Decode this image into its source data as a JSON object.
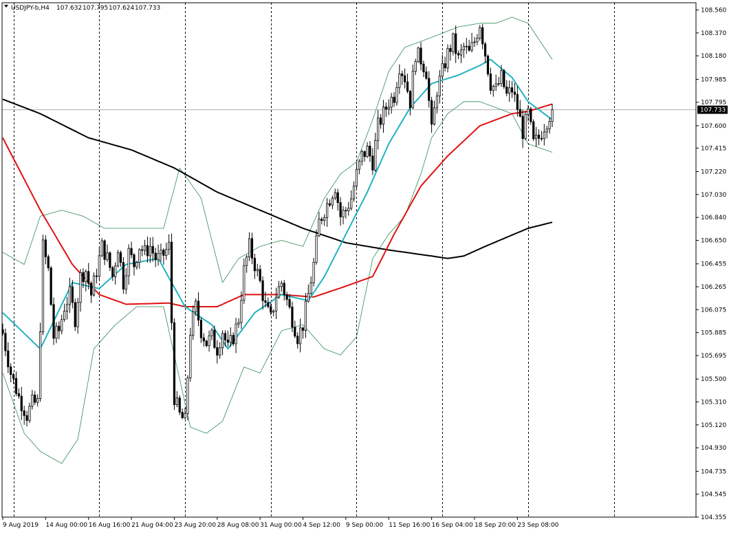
{
  "header": {
    "symbol": "USDJPY-b,H4",
    "open": "107.632",
    "high": "107.795",
    "low": "107.624",
    "close": "107.733"
  },
  "colors": {
    "background": "#ffffff",
    "bull_candle": "#ffffff",
    "bear_candle": "#000000",
    "ma_fast": "#20b2c0",
    "ma_mid": "#e01010",
    "ma_slow": "#000000",
    "bands": "#2e8b57",
    "price_tag": "#000000",
    "grid": "#000000"
  },
  "chart_data": {
    "type": "candlestick",
    "symbol": "USDJPY-b",
    "timeframe": "H4",
    "y_range": [
      104.355,
      108.62
    ],
    "y_ticks": [
      "108.560",
      "108.370",
      "108.180",
      "107.985",
      "107.795",
      "107.600",
      "107.415",
      "107.220",
      "107.030",
      "106.840",
      "106.650",
      "106.455",
      "106.265",
      "106.075",
      "105.885",
      "105.695",
      "105.500",
      "105.310",
      "105.120",
      "104.930",
      "104.735",
      "104.545",
      "104.355"
    ],
    "current_price": "107.733",
    "x_labels": [
      "9 Aug 2019",
      "14 Aug 00:00",
      "16 Aug 16:00",
      "21 Aug 04:00",
      "23 Aug 20:00",
      "28 Aug 08:00",
      "31 Aug 00:00",
      "4 Sep 12:00",
      "9 Sep 00:00",
      "11 Sep 16:00",
      "16 Sep 04:00",
      "18 Sep 20:00",
      "23 Sep 08:00"
    ],
    "x_label_index": [
      0,
      16,
      32,
      48,
      64,
      80,
      96,
      112,
      128,
      144,
      160,
      176,
      192
    ],
    "grid_vertical_index": [
      4,
      36,
      68,
      100,
      132,
      164,
      196,
      228
    ],
    "candles_shown": 206,
    "anchors": [
      [
        0,
        105.88
      ],
      [
        3,
        105.55
      ],
      [
        6,
        105.35
      ],
      [
        9,
        105.2
      ],
      [
        11,
        105.3
      ],
      [
        13,
        105.3
      ],
      [
        15,
        106.6
      ],
      [
        17,
        106.4
      ],
      [
        19,
        105.85
      ],
      [
        21,
        105.9
      ],
      [
        23,
        106.1
      ],
      [
        25,
        106.2
      ],
      [
        27,
        106.0
      ],
      [
        29,
        106.35
      ],
      [
        31,
        106.4
      ],
      [
        33,
        106.2
      ],
      [
        35,
        106.4
      ],
      [
        37,
        106.6
      ],
      [
        39,
        106.5
      ],
      [
        41,
        106.35
      ],
      [
        43,
        106.6
      ],
      [
        45,
        106.3
      ],
      [
        47,
        106.55
      ],
      [
        49,
        106.45
      ],
      [
        51,
        106.6
      ],
      [
        53,
        106.55
      ],
      [
        55,
        106.6
      ],
      [
        57,
        106.5
      ],
      [
        59,
        106.5
      ],
      [
        62,
        106.6
      ],
      [
        64,
        105.35
      ],
      [
        66,
        105.2
      ],
      [
        68,
        105.15
      ],
      [
        70,
        105.9
      ],
      [
        72,
        106.1
      ],
      [
        74,
        105.9
      ],
      [
        76,
        105.8
      ],
      [
        78,
        105.85
      ],
      [
        80,
        105.75
      ],
      [
        82,
        105.9
      ],
      [
        84,
        105.75
      ],
      [
        86,
        105.85
      ],
      [
        88,
        106.0
      ],
      [
        90,
        106.4
      ],
      [
        92,
        106.6
      ],
      [
        94,
        106.45
      ],
      [
        96,
        106.3
      ],
      [
        98,
        106.1
      ],
      [
        100,
        106.0
      ],
      [
        102,
        106.2
      ],
      [
        104,
        106.3
      ],
      [
        106,
        106.15
      ],
      [
        108,
        106.0
      ],
      [
        110,
        105.85
      ],
      [
        112,
        105.95
      ],
      [
        114,
        106.2
      ],
      [
        116,
        106.45
      ],
      [
        118,
        106.8
      ],
      [
        120,
        106.9
      ],
      [
        122,
        107.0
      ],
      [
        124,
        107.1
      ],
      [
        126,
        106.85
      ],
      [
        128,
        106.9
      ],
      [
        130,
        107.0
      ],
      [
        132,
        107.2
      ],
      [
        134,
        107.35
      ],
      [
        136,
        107.4
      ],
      [
        138,
        107.3
      ],
      [
        140,
        107.6
      ],
      [
        142,
        107.7
      ],
      [
        144,
        107.8
      ],
      [
        146,
        107.85
      ],
      [
        148,
        108.1
      ],
      [
        150,
        108.0
      ],
      [
        152,
        107.8
      ],
      [
        154,
        108.2
      ],
      [
        156,
        108.15
      ],
      [
        158,
        108.05
      ],
      [
        160,
        107.55
      ],
      [
        162,
        107.9
      ],
      [
        164,
        108.05
      ],
      [
        166,
        108.2
      ],
      [
        168,
        108.3
      ],
      [
        170,
        108.15
      ],
      [
        172,
        108.25
      ],
      [
        174,
        108.2
      ],
      [
        176,
        108.3
      ],
      [
        178,
        108.45
      ],
      [
        180,
        108.2
      ],
      [
        182,
        107.95
      ],
      [
        184,
        107.9
      ],
      [
        186,
        108.0
      ],
      [
        188,
        107.85
      ],
      [
        190,
        107.9
      ],
      [
        192,
        107.75
      ],
      [
        194,
        107.55
      ],
      [
        196,
        107.7
      ],
      [
        198,
        107.45
      ],
      [
        200,
        107.5
      ],
      [
        202,
        107.6
      ],
      [
        205,
        107.733
      ]
    ],
    "ma_fast_points": [
      [
        0,
        106.05
      ],
      [
        14,
        105.75
      ],
      [
        26,
        106.3
      ],
      [
        36,
        106.25
      ],
      [
        46,
        106.45
      ],
      [
        58,
        106.5
      ],
      [
        68,
        106.1
      ],
      [
        78,
        105.95
      ],
      [
        84,
        105.75
      ],
      [
        94,
        106.05
      ],
      [
        104,
        106.2
      ],
      [
        114,
        106.15
      ],
      [
        120,
        106.35
      ],
      [
        128,
        106.7
      ],
      [
        136,
        107.05
      ],
      [
        144,
        107.45
      ],
      [
        152,
        107.75
      ],
      [
        160,
        107.95
      ],
      [
        170,
        108.02
      ],
      [
        178,
        108.1
      ],
      [
        182,
        108.15
      ],
      [
        190,
        108.0
      ],
      [
        196,
        107.8
      ],
      [
        205,
        107.65
      ]
    ],
    "ma_mid_points": [
      [
        0,
        107.5
      ],
      [
        14,
        106.9
      ],
      [
        26,
        106.45
      ],
      [
        36,
        106.2
      ],
      [
        46,
        106.12
      ],
      [
        62,
        106.13
      ],
      [
        68,
        106.1
      ],
      [
        80,
        106.1
      ],
      [
        90,
        106.2
      ],
      [
        104,
        106.2
      ],
      [
        116,
        106.18
      ],
      [
        128,
        106.27
      ],
      [
        138,
        106.35
      ],
      [
        146,
        106.7
      ],
      [
        156,
        107.1
      ],
      [
        166,
        107.35
      ],
      [
        178,
        107.6
      ],
      [
        190,
        107.7
      ],
      [
        196,
        107.72
      ],
      [
        205,
        107.78
      ]
    ],
    "ma_slow_points": [
      [
        0,
        107.82
      ],
      [
        14,
        107.7
      ],
      [
        32,
        107.5
      ],
      [
        48,
        107.4
      ],
      [
        64,
        107.25
      ],
      [
        80,
        107.05
      ],
      [
        96,
        106.9
      ],
      [
        112,
        106.75
      ],
      [
        128,
        106.63
      ],
      [
        144,
        106.57
      ],
      [
        160,
        106.52
      ],
      [
        166,
        106.5
      ],
      [
        172,
        106.52
      ],
      [
        180,
        106.6
      ],
      [
        196,
        106.75
      ],
      [
        205,
        106.8
      ]
    ],
    "band_upper_points": [
      [
        0,
        106.55
      ],
      [
        8,
        106.45
      ],
      [
        14,
        106.85
      ],
      [
        22,
        106.9
      ],
      [
        30,
        106.85
      ],
      [
        38,
        106.75
      ],
      [
        48,
        106.75
      ],
      [
        60,
        106.75
      ],
      [
        66,
        107.25
      ],
      [
        74,
        107.0
      ],
      [
        82,
        106.3
      ],
      [
        88,
        106.5
      ],
      [
        96,
        106.6
      ],
      [
        104,
        106.65
      ],
      [
        112,
        106.6
      ],
      [
        120,
        107.0
      ],
      [
        126,
        107.2
      ],
      [
        132,
        107.3
      ],
      [
        138,
        107.65
      ],
      [
        144,
        108.05
      ],
      [
        150,
        108.25
      ],
      [
        156,
        108.3
      ],
      [
        162,
        108.35
      ],
      [
        170,
        108.42
      ],
      [
        178,
        108.45
      ],
      [
        184,
        108.45
      ],
      [
        190,
        108.5
      ],
      [
        196,
        108.45
      ],
      [
        205,
        108.15
      ]
    ],
    "band_lower_points": [
      [
        0,
        105.55
      ],
      [
        8,
        105.05
      ],
      [
        14,
        104.9
      ],
      [
        22,
        104.8
      ],
      [
        28,
        105.0
      ],
      [
        34,
        105.75
      ],
      [
        42,
        105.95
      ],
      [
        50,
        106.1
      ],
      [
        60,
        106.1
      ],
      [
        64,
        105.7
      ],
      [
        70,
        105.1
      ],
      [
        76,
        105.05
      ],
      [
        82,
        105.15
      ],
      [
        90,
        105.6
      ],
      [
        96,
        105.55
      ],
      [
        104,
        105.9
      ],
      [
        112,
        105.95
      ],
      [
        120,
        105.75
      ],
      [
        126,
        105.7
      ],
      [
        132,
        105.85
      ],
      [
        138,
        106.5
      ],
      [
        144,
        106.7
      ],
      [
        150,
        106.85
      ],
      [
        156,
        107.2
      ],
      [
        160,
        107.5
      ],
      [
        166,
        107.7
      ],
      [
        172,
        107.8
      ],
      [
        178,
        107.8
      ],
      [
        184,
        107.75
      ],
      [
        190,
        107.7
      ],
      [
        196,
        107.45
      ],
      [
        205,
        107.38
      ]
    ]
  }
}
